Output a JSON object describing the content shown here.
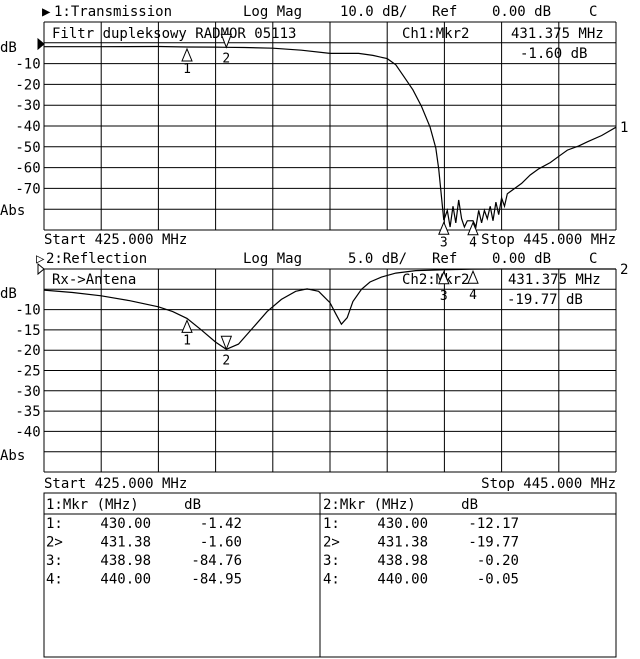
{
  "colors": {
    "background": "#ffffff",
    "ink": "#000000"
  },
  "chart_data": [
    {
      "type": "line",
      "channel_label": "1:Transmission",
      "format": "Log Mag",
      "scale": "10.0 dB/",
      "ref_label": "Ref",
      "ref": "0.00 dB",
      "flag": "C",
      "annotation": "Filtr dupleksowy RADMOR 05113",
      "active_marker_label": "Ch1:Mkr2",
      "active_marker_freq": "431.375 MHz",
      "active_marker_value": "-1.60 dB",
      "y_unit": "dB",
      "y_ticks": [
        "-10",
        "-20",
        "-30",
        "-40",
        "-50",
        "-60",
        "-70"
      ],
      "y_mode": "Abs",
      "start_label": "Start 425.000 MHz",
      "stop_label": "Stop 445.000 MHz",
      "xlim": [
        425,
        445
      ],
      "ylim": [
        -90,
        0
      ],
      "y_per_div": 10,
      "grid": true,
      "series": [
        {
          "trace_label": "1",
          "x": [
            425,
            427,
            429,
            430,
            431,
            431.375,
            432,
            433,
            434,
            435,
            436,
            436.5,
            437,
            437.3,
            437.6,
            437.9,
            438.2,
            438.5,
            438.7,
            438.8,
            438.98,
            439.1,
            439.2,
            439.3,
            439.4,
            439.5,
            439.6,
            439.7,
            439.8,
            440,
            440.1,
            440.2,
            440.3,
            440.4,
            440.5,
            440.6,
            440.7,
            440.8,
            440.9,
            441,
            441.1,
            441.2,
            441.4,
            441.7,
            442,
            442.3,
            442.7,
            443,
            443.3,
            443.7,
            444,
            444.5,
            445
          ],
          "y": [
            -1.3,
            -1.3,
            -1.2,
            -1.42,
            -1.5,
            -1.6,
            -1.7,
            -2.0,
            -3.0,
            -4.5,
            -4.5,
            -5.5,
            -7,
            -10,
            -16,
            -22,
            -30,
            -40,
            -50,
            -60,
            -84.76,
            -80,
            -88,
            -78,
            -86,
            -75,
            -84,
            -88,
            -85,
            -84.95,
            -88,
            -80,
            -86,
            -80,
            -84,
            -78,
            -85,
            -76,
            -82,
            -74,
            -78,
            -72,
            -70,
            -67,
            -63,
            -60,
            -57,
            -54,
            -51,
            -49,
            -47,
            -44,
            -40
          ]
        }
      ],
      "markers": [
        {
          "id": "1",
          "freq": 430.0,
          "value": -1.42,
          "style": "up"
        },
        {
          "id": "2",
          "freq": 431.375,
          "value": -1.6,
          "style": "down"
        },
        {
          "id": "3",
          "freq": 438.98,
          "value": -84.76,
          "style": "up"
        },
        {
          "id": "4",
          "freq": 440.0,
          "value": -84.95,
          "style": "up"
        }
      ]
    },
    {
      "type": "line",
      "channel_label": "2:Reflection",
      "format": "Log Mag",
      "scale": "5.0 dB/",
      "ref_label": "Ref",
      "ref": "0.00 dB",
      "flag": "C",
      "annotation": "Rx->Antena",
      "active_marker_label": "Ch2:Mkr2",
      "active_marker_freq": "431.375 MHz",
      "active_marker_value": "-19.77 dB",
      "y_unit": "dB",
      "y_ticks": [
        "-10",
        "-15",
        "-20",
        "-25",
        "-30",
        "-35",
        "-40"
      ],
      "y_mode": "Abs",
      "start_label": "Start 425.000 MHz",
      "stop_label": "Stop 445.000 MHz",
      "xlim": [
        425,
        445
      ],
      "ylim": [
        -50,
        0
      ],
      "y_per_div": 5,
      "grid": true,
      "series": [
        {
          "trace_label": "2",
          "x": [
            425,
            426,
            427,
            428,
            429,
            429.5,
            430,
            430.5,
            431,
            431.375,
            431.8,
            432.3,
            432.8,
            433.3,
            433.8,
            434.2,
            434.6,
            435,
            435.2,
            435.4,
            435.6,
            435.8,
            436.1,
            436.4,
            436.8,
            437.3,
            438,
            438.98,
            440,
            441,
            442,
            443,
            444,
            445
          ],
          "y": [
            -5.2,
            -5.8,
            -6.6,
            -7.8,
            -9.3,
            -10.5,
            -12.17,
            -15,
            -18,
            -19.77,
            -18.5,
            -14.5,
            -10.5,
            -7.5,
            -5.5,
            -4.9,
            -5.5,
            -8.3,
            -11,
            -13.6,
            -12,
            -8,
            -5,
            -3.2,
            -2,
            -1,
            -0.4,
            -0.2,
            -0.05,
            0,
            0,
            0,
            0,
            0
          ]
        }
      ],
      "markers": [
        {
          "id": "1",
          "freq": 430.0,
          "value": -12.17,
          "style": "up"
        },
        {
          "id": "2",
          "freq": 431.375,
          "value": -19.77,
          "style": "down"
        },
        {
          "id": "3",
          "freq": 438.98,
          "value": -0.2,
          "style": "up"
        },
        {
          "id": "4",
          "freq": 440.0,
          "value": -0.05,
          "style": "up"
        }
      ]
    }
  ],
  "marker_tables": [
    {
      "header_mkr": "1:Mkr (MHz)",
      "header_db": "dB",
      "rows": [
        {
          "id": "1:",
          "freq": "430.00",
          "db": "-1.42"
        },
        {
          "id": "2>",
          "freq": "431.38",
          "db": "-1.60"
        },
        {
          "id": "3:",
          "freq": "438.98",
          "db": "-84.76"
        },
        {
          "id": "4:",
          "freq": "440.00",
          "db": "-84.95"
        }
      ]
    },
    {
      "header_mkr": "2:Mkr (MHz)",
      "header_db": "dB",
      "rows": [
        {
          "id": "1:",
          "freq": "430.00",
          "db": "-12.17"
        },
        {
          "id": "2>",
          "freq": "431.38",
          "db": "-19.77"
        },
        {
          "id": "3:",
          "freq": "438.98",
          "db": "-0.20"
        },
        {
          "id": "4:",
          "freq": "440.00",
          "db": "-0.05"
        }
      ]
    }
  ]
}
